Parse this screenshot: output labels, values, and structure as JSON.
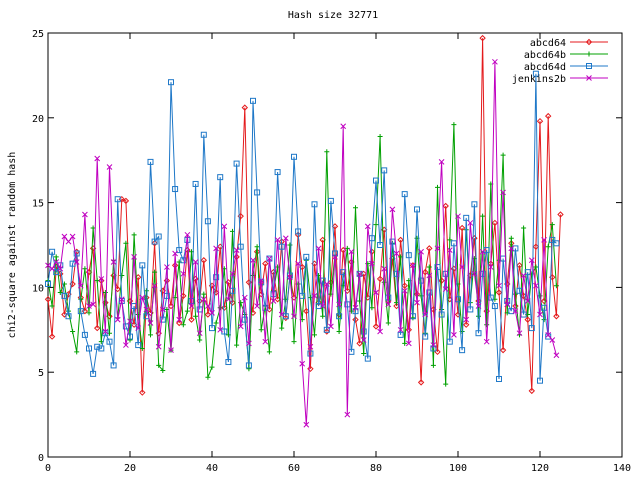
{
  "chart_data": {
    "type": "line",
    "title": "Hash size 32771",
    "xlabel": "",
    "ylabel": "chi2-square against random hash",
    "xlim": [
      0,
      140
    ],
    "ylim": [
      0,
      25
    ],
    "xticks": [
      0,
      20,
      40,
      60,
      80,
      100,
      120,
      140
    ],
    "yticks": [
      0,
      5,
      10,
      15,
      20,
      25
    ],
    "grid": false,
    "legend_position": "top-right",
    "series": [
      {
        "name": "abcd64",
        "color": "#e41a1c",
        "marker": "diamond",
        "x_start": 0,
        "values": [
          9.3,
          7.1,
          11.2,
          10.8,
          8.4,
          9.6,
          10.2,
          12.1,
          9.4,
          8.6,
          10.9,
          12.3,
          7.6,
          10.4,
          9.1,
          8.3,
          10.7,
          9.9,
          15.2,
          15.1,
          9.2,
          7.8,
          10.6,
          3.8,
          9.4,
          8.5,
          12.6,
          7.3,
          9.8,
          10.4,
          8.9,
          11.3,
          7.9,
          9.5,
          12.2,
          8.1,
          10.5,
          9.2,
          11.6,
          8.4,
          10.1,
          9.7,
          12.4,
          8.8,
          10.3,
          9.1,
          11.8,
          14.2,
          20.6,
          10.3,
          8.5,
          12.1,
          9.6,
          11.4,
          8.7,
          10.9,
          9.3,
          12.7,
          8.2,
          10.6,
          9.4,
          13.1,
          11.2,
          8.6,
          5.2,
          11.4,
          9.1,
          12.8,
          7.4,
          10.3,
          13.6,
          8.4,
          12.2,
          9.8,
          11.5,
          8.1,
          6.7,
          10.8,
          9.4,
          12.1,
          7.7,
          10.5,
          13.4,
          9.2,
          11.7,
          8.9,
          12.8,
          10.1,
          7.5,
          11.3,
          9.6,
          4.4,
          10.9,
          12.3,
          8.7,
          6.2,
          10.4,
          14.8,
          9.3,
          11.1,
          8.4,
          13.5,
          7.8,
          10.7,
          12.9,
          9.2,
          24.7,
          8.6,
          11.4,
          13.8,
          9.7,
          6.3,
          10.2,
          12.6,
          8.9,
          11.3,
          9.5,
          8.1,
          3.9,
          12.4,
          19.8,
          9.2,
          20.1,
          10.6,
          8.3,
          14.3
        ]
      },
      {
        "name": "abcd64b",
        "color": "#00a000",
        "marker": "plus",
        "x_start": 0,
        "values": [
          10.4,
          8.9,
          11.8,
          9.7,
          10.2,
          8.6,
          7.4,
          6.2,
          9.3,
          11.1,
          8.5,
          13.5,
          10.4,
          6.8,
          9.7,
          7.3,
          11.6,
          8.2,
          10.7,
          12.6,
          6.9,
          13.1,
          8.4,
          6.4,
          9.8,
          7.2,
          10.9,
          5.4,
          5.1,
          8.7,
          6.3,
          9.4,
          11.5,
          7.8,
          8.6,
          12.1,
          8.3,
          6.9,
          9.6,
          4.7,
          5.3,
          7.9,
          8.8,
          11.1,
          7.2,
          13.3,
          6.6,
          9.1,
          8.4,
          5.2,
          10.7,
          12.4,
          7.5,
          8.9,
          6.2,
          9.8,
          11.2,
          7.6,
          9.3,
          12.5,
          6.8,
          10.2,
          8.1,
          11.6,
          9.4,
          7.2,
          10.7,
          8.3,
          18.0,
          9.6,
          11.9,
          7.4,
          10.1,
          12.3,
          8.6,
          14.7,
          9.2,
          6.1,
          11.4,
          8.8,
          13.7,
          18.9,
          10.3,
          7.9,
          12.6,
          9.1,
          11.8,
          6.7,
          10.4,
          8.2,
          12.9,
          9.5,
          7.3,
          11.2,
          5.4,
          15.9,
          8.7,
          4.3,
          12.8,
          19.6,
          10.2,
          7.4,
          13.4,
          9.1,
          11.7,
          8.3,
          14.2,
          7.8,
          16.1,
          9.3,
          11.6,
          17.8,
          8.5,
          12.9,
          9.6,
          7.2,
          13.5,
          8.4,
          10.8,
          11.2,
          9.5,
          8.1,
          12.4,
          13.7,
          10.1
        ]
      },
      {
        "name": "abcd64d",
        "color": "#1f78c8",
        "marker": "square",
        "x_start": 0,
        "values": [
          10.2,
          12.1,
          10.9,
          11.3,
          9.5,
          8.3,
          11.4,
          12.0,
          8.6,
          7.2,
          6.4,
          4.9,
          6.5,
          6.4,
          7.3,
          6.8,
          5.4,
          15.2,
          9.2,
          7.7,
          7.1,
          8.9,
          6.6,
          11.3,
          8.3,
          17.4,
          12.7,
          13.0,
          8.1,
          9.5,
          22.1,
          15.8,
          12.2,
          11.6,
          12.8,
          9.2,
          16.1,
          8.7,
          19.0,
          13.9,
          7.6,
          10.6,
          16.5,
          7.4,
          5.6,
          9.8,
          17.3,
          12.4,
          8.1,
          5.4,
          21.0,
          15.6,
          10.3,
          8.8,
          11.7,
          9.6,
          16.8,
          12.4,
          8.3,
          10.7,
          17.7,
          13.3,
          9.5,
          11.8,
          6.1,
          14.9,
          8.9,
          10.4,
          7.5,
          15.1,
          12.0,
          8.3,
          10.9,
          9.0,
          6.2,
          8.6,
          10.8,
          7.4,
          5.8,
          12.9,
          16.3,
          12.5,
          16.9,
          9.4,
          12.7,
          10.8,
          7.2,
          15.5,
          11.9,
          8.3,
          14.6,
          10.4,
          7.1,
          9.7,
          6.4,
          11.2,
          8.4,
          10.8,
          6.8,
          12.6,
          9.3,
          6.3,
          14.1,
          8.7,
          14.9,
          7.3,
          10.8,
          12.2,
          9.4,
          8.9,
          4.6,
          11.7,
          9.2,
          8.6,
          12.3,
          9.8,
          8.4,
          10.9,
          7.6,
          22.6,
          4.5,
          8.8,
          7.1,
          12.8,
          12.6
        ]
      },
      {
        "name": "jenkins2b",
        "color": "#c000c0",
        "marker": "cross",
        "x_start": 0,
        "values": [
          11.3,
          11.1,
          11.5,
          11.1,
          13.0,
          12.7,
          13.0,
          11.5,
          10.1,
          14.3,
          8.9,
          9.0,
          17.6,
          10.5,
          7.4,
          17.1,
          11.5,
          8.1,
          9.3,
          6.6,
          8.0,
          11.8,
          7.6,
          9.4,
          8.7,
          7.9,
          10.1,
          6.5,
          8.7,
          11.2,
          6.3,
          12.0,
          8.1,
          10.8,
          13.1,
          8.9,
          11.5,
          7.3,
          9.3,
          8.9,
          8.5,
          12.3,
          7.5,
          13.6,
          9.3,
          10.8,
          12.2,
          7.7,
          9.4,
          6.7,
          11.6,
          8.9,
          10.4,
          6.8,
          11.7,
          9.2,
          12.8,
          8.4,
          12.9,
          10.6,
          8.3,
          11.4,
          5.5,
          1.9,
          6.5,
          9.5,
          12.3,
          8.9,
          10.2,
          7.7,
          11.8,
          9.0,
          19.5,
          2.5,
          12.1,
          8.8,
          10.8,
          6.9,
          13.6,
          11.4,
          9.7,
          7.4,
          11.1,
          9.0,
          14.6,
          12.0,
          7.5,
          9.8,
          6.7,
          11.3,
          9.1,
          12.1,
          8.4,
          10.7,
          6.6,
          12.3,
          17.4,
          9.9,
          12.2,
          7.2,
          14.2,
          11.2,
          8.1,
          13.8,
          10.8,
          8.9,
          12.1,
          6.8,
          11.2,
          23.3,
          10.1,
          15.6,
          9.0,
          12.3,
          8.6,
          7.3,
          10.7,
          9.2,
          11.6,
          10.1,
          8.4,
          12.8,
          7.2,
          6.9,
          6.0
        ]
      }
    ]
  }
}
